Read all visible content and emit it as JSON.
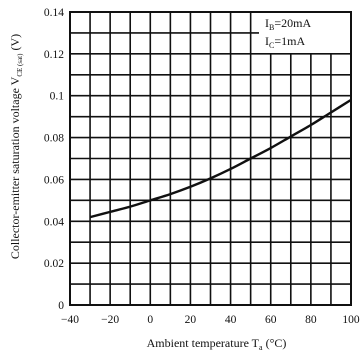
{
  "chart_data": {
    "type": "line",
    "title": "",
    "xlabel": "Ambient temperature T",
    "xlabel_sub": "a",
    "xlabel_unit": "(°C)",
    "ylabel": "Collector-emitter saturation voltage V",
    "ylabel_sub": "CE (sat)",
    "ylabel_unit": "(V)",
    "xlim": [
      -40,
      100
    ],
    "ylim": [
      0,
      0.14
    ],
    "x_ticks": [
      -40,
      -20,
      0,
      20,
      40,
      60,
      80,
      100
    ],
    "x_tick_labels": [
      "−40",
      "−20",
      "0",
      "20",
      "40",
      "60",
      "80",
      "100"
    ],
    "y_ticks": [
      0,
      0.02,
      0.04,
      0.06,
      0.08,
      0.1,
      0.12,
      0.14
    ],
    "y_tick_labels": [
      "0",
      "0.02",
      "0.04",
      "0.06",
      "0.08",
      "0.1",
      "0.12",
      "0.14"
    ],
    "grid": true,
    "x_grid_step": 10,
    "y_grid_step": 0.01,
    "conditions": [
      {
        "var": "I",
        "sub": "B",
        "value": "=20mA"
      },
      {
        "var": "I",
        "sub": "C",
        "value": "=1mA"
      }
    ],
    "series": [
      {
        "x": [
          -30,
          -20,
          -10,
          0,
          10,
          20,
          30,
          40,
          50,
          60,
          70,
          80,
          90,
          100
        ],
        "y": [
          0.042,
          0.0445,
          0.047,
          0.05,
          0.053,
          0.0565,
          0.0605,
          0.065,
          0.07,
          0.075,
          0.0805,
          0.086,
          0.092,
          0.098
        ]
      }
    ]
  }
}
